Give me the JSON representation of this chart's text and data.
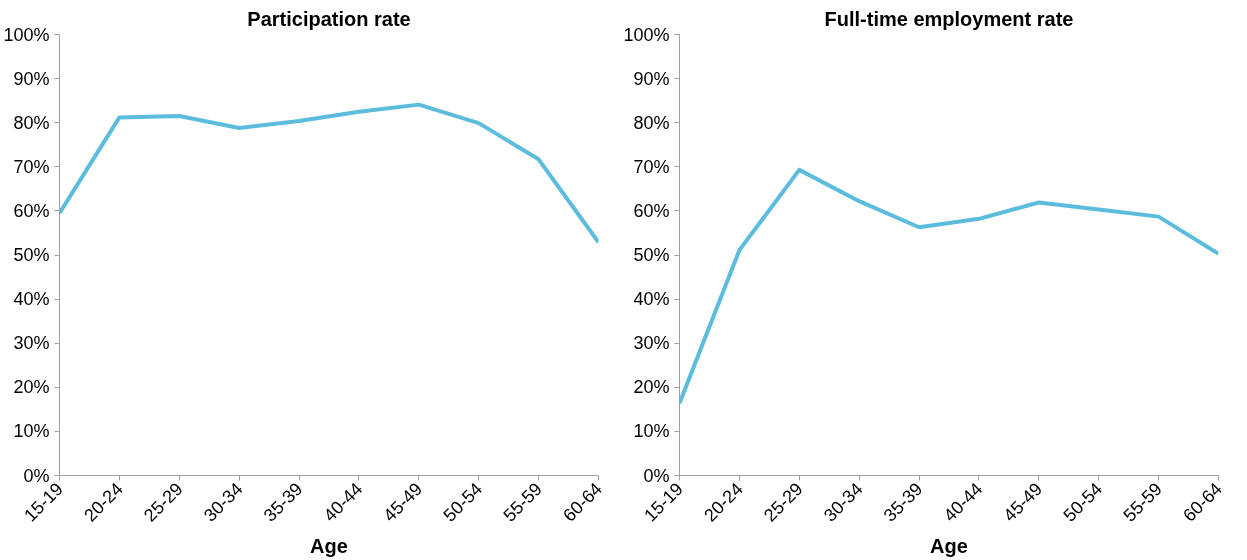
{
  "chart_data": [
    {
      "type": "line",
      "title": "Participation rate",
      "xlabel": "Age",
      "categories": [
        "15-19",
        "20-24",
        "25-29",
        "30-34",
        "35-39",
        "40-44",
        "45-49",
        "50-54",
        "55-59",
        "60-64"
      ],
      "series": [
        {
          "color": "#5bbcdd",
          "values": [
            59.5,
            81.2,
            81.5,
            78.8,
            80.4,
            82.5,
            84.1,
            79.9,
            71.7,
            52.9
          ]
        }
      ],
      "ylim": [
        0,
        100
      ],
      "yticks": [
        {
          "value": 0,
          "label": "0%"
        },
        {
          "value": 10,
          "label": "10%"
        },
        {
          "value": 20,
          "label": "20%"
        },
        {
          "value": 30,
          "label": "30%"
        },
        {
          "value": 40,
          "label": "40%"
        },
        {
          "value": 50,
          "label": "50%"
        },
        {
          "value": 60,
          "label": "60%"
        },
        {
          "value": 70,
          "label": "70%"
        },
        {
          "value": 80,
          "label": "80%"
        },
        {
          "value": 90,
          "label": "90%"
        },
        {
          "value": 100,
          "label": "100%"
        }
      ],
      "grid": false,
      "marker": "none",
      "line_style": "solid"
    },
    {
      "type": "line",
      "title": "Full-time employment rate",
      "xlabel": "Age",
      "categories": [
        "15-19",
        "20-24",
        "25-29",
        "30-34",
        "35-39",
        "40-44",
        "45-49",
        "50-54",
        "55-59",
        "60-64"
      ],
      "series": [
        {
          "color": "#5bbcdd",
          "values": [
            16.4,
            51.1,
            69.3,
            62.2,
            56.3,
            58.2,
            61.9,
            60.3,
            58.7,
            50.3
          ]
        }
      ],
      "ylim": [
        0,
        100
      ],
      "yticks": [
        {
          "value": 0,
          "label": "0%"
        },
        {
          "value": 10,
          "label": "10%"
        },
        {
          "value": 20,
          "label": "20%"
        },
        {
          "value": 30,
          "label": "30%"
        },
        {
          "value": 40,
          "label": "40%"
        },
        {
          "value": 50,
          "label": "50%"
        },
        {
          "value": 60,
          "label": "60%"
        },
        {
          "value": 70,
          "label": "70%"
        },
        {
          "value": 80,
          "label": "80%"
        },
        {
          "value": 90,
          "label": "90%"
        },
        {
          "value": 100,
          "label": "100%"
        }
      ],
      "grid": false,
      "marker": "none",
      "line_style": "solid"
    }
  ]
}
